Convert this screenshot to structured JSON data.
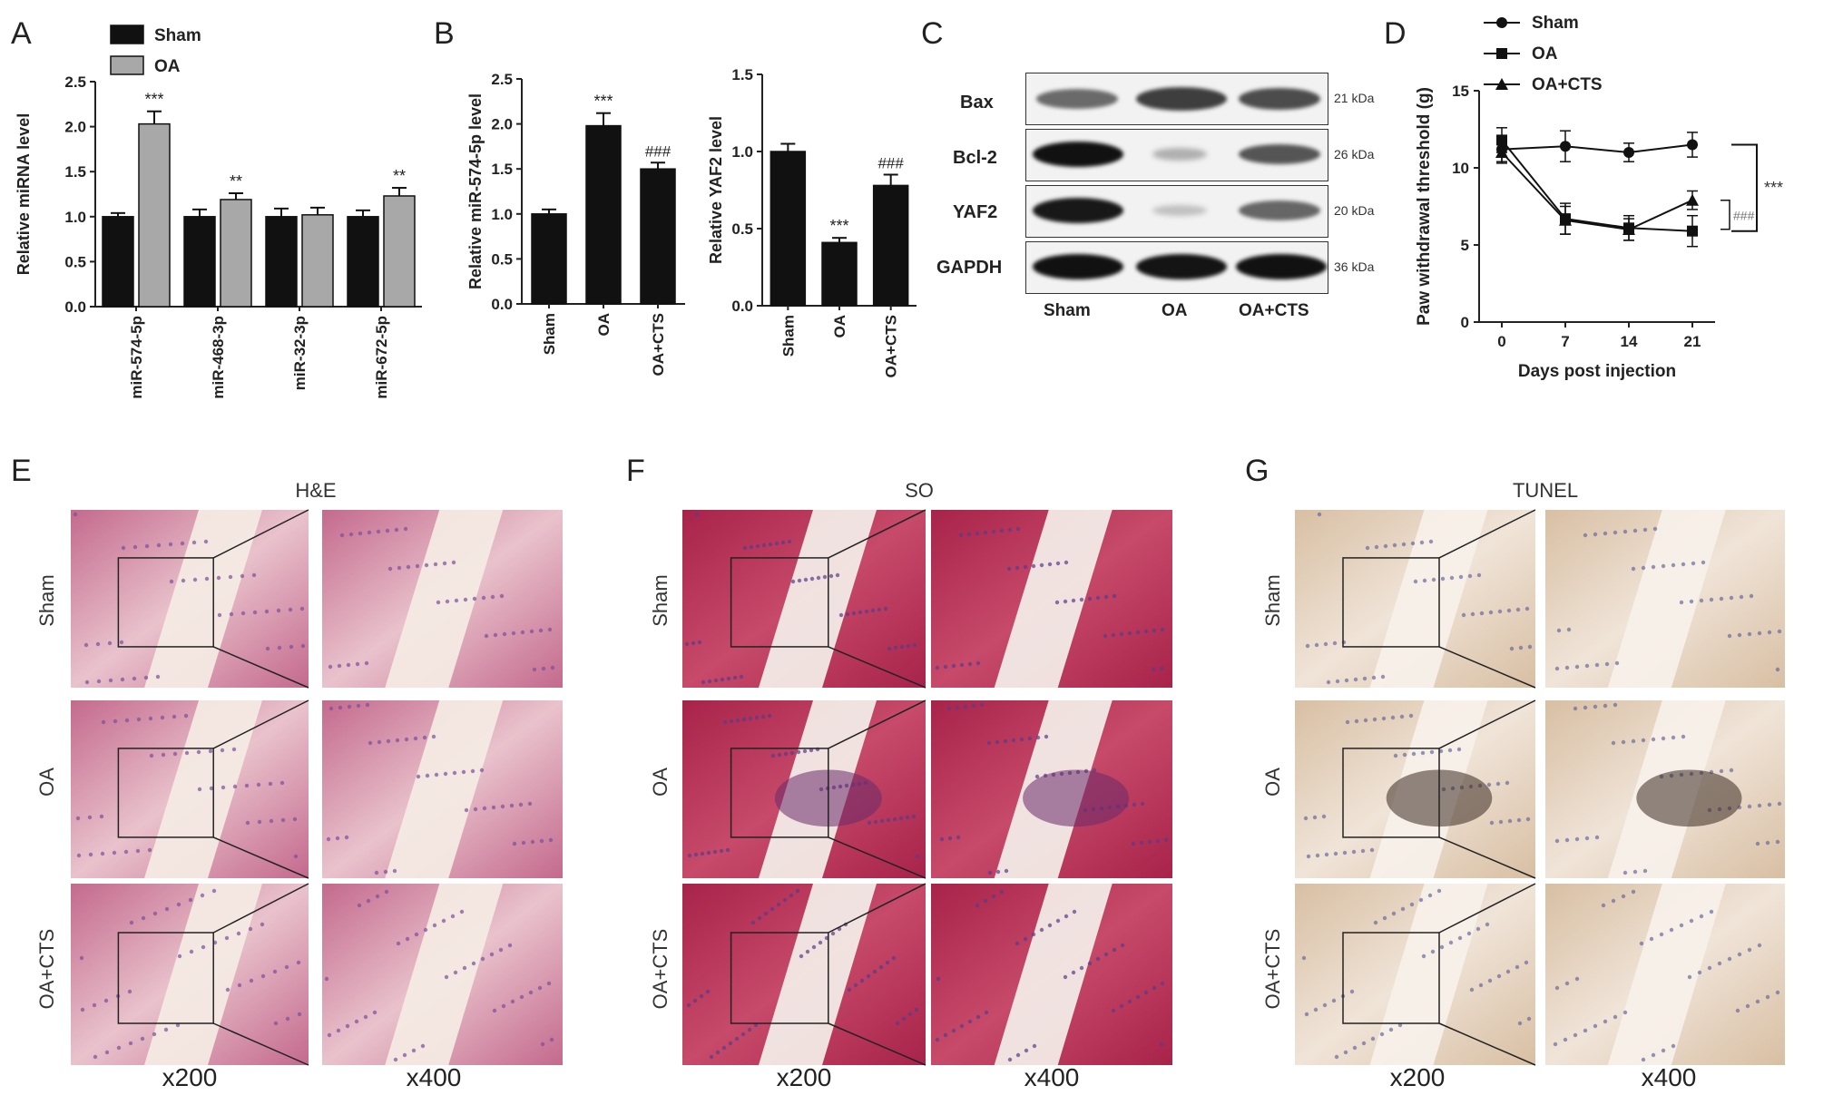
{
  "panel_letters": [
    "A",
    "B",
    "C",
    "D",
    "E",
    "F",
    "G"
  ],
  "chart_data": [
    {
      "id": "A",
      "type": "bar",
      "categories": [
        "miR-574-5p",
        "miR-468-3p",
        "miR-32-3p",
        "miR-672-5p"
      ],
      "series": [
        {
          "name": "Sham",
          "values": [
            1.0,
            1.0,
            1.0,
            1.0
          ],
          "errors": [
            0.04,
            0.08,
            0.09,
            0.07
          ],
          "color": "#111111"
        },
        {
          "name": "OA",
          "values": [
            2.03,
            1.19,
            1.02,
            1.23
          ],
          "errors": [
            0.14,
            0.07,
            0.08,
            0.09
          ],
          "color": "#a8a8a8"
        }
      ],
      "significance": {
        "OA": [
          "***",
          "**",
          "",
          "**"
        ]
      },
      "ylabel": "Relative miRNA level",
      "ylim": [
        0,
        2.5
      ],
      "yticks": [
        "0.0",
        "0.5",
        "1.0",
        "1.5",
        "2.0",
        "2.5"
      ],
      "legend": "top-left"
    },
    {
      "id": "B1",
      "type": "bar",
      "categories": [
        "Sham",
        "OA",
        "OA+CTS"
      ],
      "values": [
        1.0,
        1.98,
        1.5
      ],
      "errors": [
        0.05,
        0.14,
        0.07
      ],
      "significance": [
        "",
        "***",
        "###"
      ],
      "ylabel": "Relative miR-574-5p level",
      "ylim": [
        0,
        2.5
      ],
      "yticks": [
        "0.0",
        "0.5",
        "1.0",
        "1.5",
        "2.0",
        "2.5"
      ]
    },
    {
      "id": "B2",
      "type": "bar",
      "categories": [
        "Sham",
        "OA",
        "OA+CTS"
      ],
      "values": [
        1.0,
        0.41,
        0.78
      ],
      "errors": [
        0.05,
        0.03,
        0.07
      ],
      "significance": [
        "",
        "***",
        "###"
      ],
      "ylabel": "Relative YAF2 level",
      "ylim": [
        0,
        1.5
      ],
      "yticks": [
        "0.0",
        "0.5",
        "1.0",
        "1.5"
      ]
    },
    {
      "id": "D",
      "type": "line",
      "x": [
        0,
        7,
        14,
        21
      ],
      "series": [
        {
          "name": "Sham",
          "values": [
            11.2,
            11.4,
            11.0,
            11.5
          ],
          "errors": [
            0.8,
            1.0,
            0.6,
            0.8
          ],
          "marker": "circle"
        },
        {
          "name": "OA",
          "values": [
            11.8,
            6.7,
            6.1,
            5.9
          ],
          "errors": [
            0.8,
            1.0,
            0.8,
            1.0
          ],
          "marker": "square"
        },
        {
          "name": "OA+CTS",
          "values": [
            11.0,
            6.6,
            6.0,
            7.9
          ],
          "errors": [
            0.7,
            0.9,
            0.7,
            0.6
          ],
          "marker": "triangle"
        }
      ],
      "xlabel": "Days post injection",
      "ylabel": "Paw withdrawal threshold (g)",
      "ylim": [
        0,
        15
      ],
      "yticks": [
        "0",
        "5",
        "10",
        "15"
      ],
      "xticks": [
        "0",
        "7",
        "14",
        "21"
      ],
      "brackets": [
        "***",
        "###"
      ],
      "legend": "top"
    }
  ],
  "western_blot": {
    "proteins": [
      {
        "name": "Bax",
        "kda": "21 kDa"
      },
      {
        "name": "Bcl-2",
        "kda": "26 kDa"
      },
      {
        "name": "YAF2",
        "kda": "20 kDa"
      },
      {
        "name": "GAPDH",
        "kda": "36 kDa"
      }
    ],
    "lanes": [
      "Sham",
      "OA",
      "OA+CTS"
    ]
  },
  "histology": {
    "sections": [
      {
        "id": "E",
        "title": "H&E"
      },
      {
        "id": "F",
        "title": "SO"
      },
      {
        "id": "G",
        "title": "TUNEL"
      }
    ],
    "rows": [
      "Sham",
      "OA",
      "OA+CTS"
    ],
    "magnifications": [
      "x200",
      "x400"
    ]
  }
}
